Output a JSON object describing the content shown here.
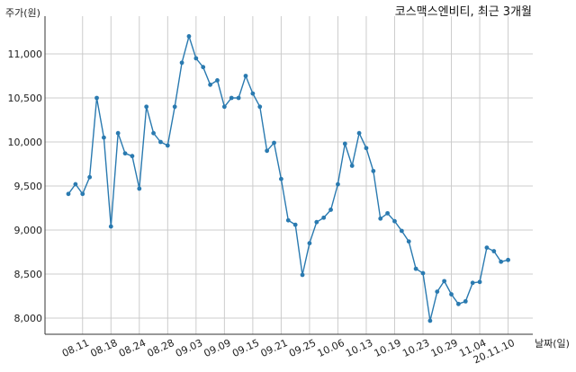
{
  "chart_data": {
    "type": "line",
    "title": "코스맥스엔비티, 최근 3개월",
    "ylabel": "주가(원)",
    "xlabel": "날짜(일)",
    "ylim": [
      7800,
      11400
    ],
    "yticks": [
      8000,
      8500,
      9000,
      9500,
      10000,
      10500,
      11000
    ],
    "ytick_labels": [
      "8,000",
      "8,500",
      "9,000",
      "9,500",
      "10,000",
      "10,500",
      "11,000"
    ],
    "xtick_labels": [
      "08.11",
      "08.18",
      "08.24",
      "08.28",
      "09.03",
      "09.09",
      "09.15",
      "09.21",
      "09.25",
      "10.06",
      "10.13",
      "10.19",
      "10.23",
      "10.29",
      "11.04",
      "20.11.10"
    ],
    "xtick_index": [
      2,
      6,
      10,
      14,
      18,
      22,
      26,
      30,
      34,
      38,
      42,
      46,
      50,
      54,
      58,
      62
    ],
    "grid": true,
    "color": "#2a7ab0",
    "series": [
      {
        "values": [
          9410,
          9520,
          9410,
          9600,
          10500,
          10050,
          9040,
          10100,
          9870,
          9840,
          9470,
          10400,
          10100,
          10000,
          9960,
          10400,
          10900,
          11200,
          10950,
          10850,
          10650,
          10700,
          10400,
          10500,
          10500,
          10750,
          10550,
          10400,
          9900,
          9990,
          9580,
          9110,
          9060,
          8490,
          8850,
          9090,
          9140,
          9230,
          9520,
          9980,
          9730,
          10100,
          9930,
          9670,
          9130,
          9190,
          9100,
          8990,
          8870,
          8560,
          8510,
          7970,
          8300,
          8420,
          8270,
          8160,
          8190,
          8400,
          8410,
          8800,
          8760,
          8640,
          8660
        ]
      }
    ]
  }
}
